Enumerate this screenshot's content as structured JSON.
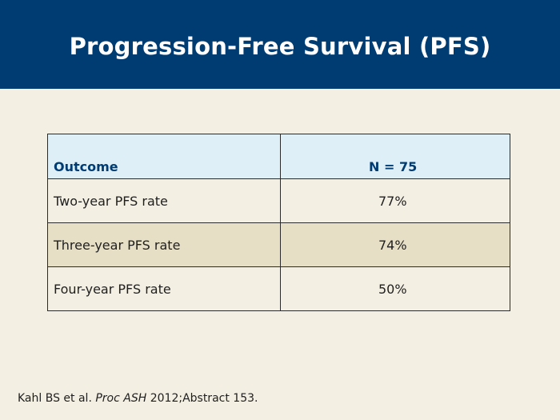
{
  "slide": {
    "title": "Progression-Free Survival (PFS)",
    "colors": {
      "header_bg": "#003c71",
      "slide_bg": "#f3efe2",
      "table_header_bg": "#deeff7",
      "shaded_row_bg": "#e6dfc6"
    }
  },
  "table": {
    "headers": [
      "Outcome",
      "N = 75"
    ],
    "rows": [
      {
        "label": "Two-year PFS rate",
        "value": "77%"
      },
      {
        "label": "Three-year PFS rate",
        "value": "74%"
      },
      {
        "label": "Four-year PFS rate",
        "value": "50%"
      }
    ]
  },
  "citation": {
    "authors": "Kahl BS et al.",
    "journal": "Proc ASH",
    "details": "2012;Abstract 153."
  }
}
